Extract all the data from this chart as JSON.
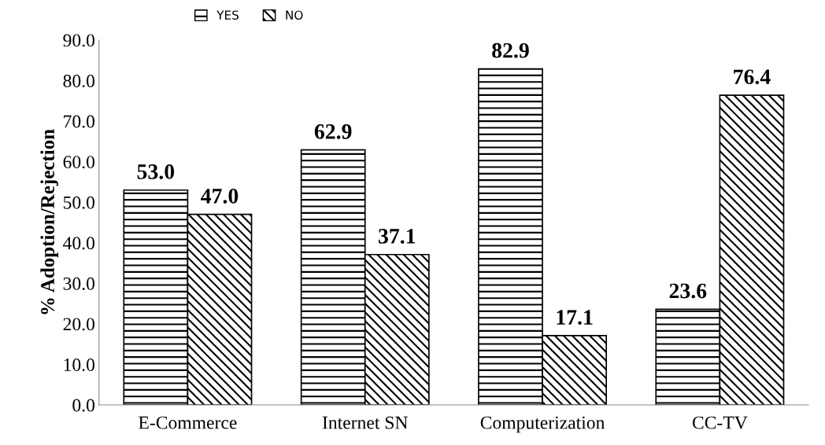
{
  "chart_data": {
    "type": "bar",
    "ylabel": "% Adoption/Rejection",
    "categories": [
      "E-Commerce",
      "Internet SN",
      "Computerization",
      "CC-TV"
    ],
    "series": [
      {
        "name": "YES",
        "color": "#000000",
        "values": [
          53.0,
          62.9,
          82.9,
          23.6
        ],
        "value_labels": [
          "53.0",
          "62.9",
          "82.9",
          "23.6"
        ]
      },
      {
        "name": "NO",
        "color": "#000000",
        "values": [
          47.0,
          37.1,
          17.1,
          76.4
        ],
        "value_labels": [
          "47.0",
          "37.1",
          "17.1",
          "76.4"
        ]
      }
    ],
    "ylim": [
      0,
      90
    ],
    "yticks": [
      {
        "value": 0,
        "label": "0.0"
      },
      {
        "value": 10,
        "label": "10.0"
      },
      {
        "value": 20,
        "label": "20.0"
      },
      {
        "value": 30,
        "label": "30.0"
      },
      {
        "value": 40,
        "label": "40.0"
      },
      {
        "value": 50,
        "label": "50.0"
      },
      {
        "value": 60,
        "label": "60.0"
      },
      {
        "value": 70,
        "label": "70.0"
      },
      {
        "value": 80,
        "label": "80.0"
      },
      {
        "value": 90,
        "label": "90.0"
      }
    ],
    "grid": false,
    "legend": "top"
  }
}
